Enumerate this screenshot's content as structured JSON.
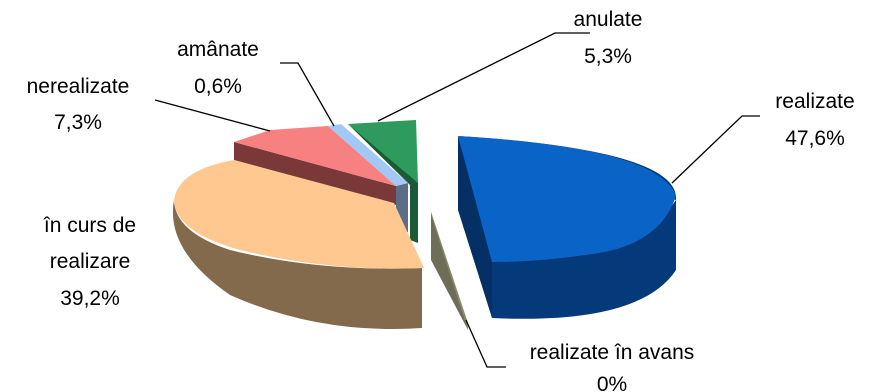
{
  "chart_data": {
    "type": "pie",
    "style": "3d-exploded",
    "legend": "none",
    "series": [
      {
        "label": "realizate",
        "value_label": "47,6%",
        "value": 47.6,
        "color": "#0a64c8",
        "side_color": "#053a7a"
      },
      {
        "label": "realizate în avans",
        "value_label": "0%",
        "value": 0,
        "color": "#8a8a70",
        "side_color": "#6e6e58"
      },
      {
        "label": "în curs de realizare",
        "value_label": "39,2%",
        "value": 39.2,
        "color": "#ffc891",
        "side_color": "#836a4c"
      },
      {
        "label": "nerealizate",
        "value_label": "7,3%",
        "value": 7.3,
        "color": "#f78080",
        "side_color": "#7a3838"
      },
      {
        "label": "amânate",
        "value_label": "0,6%",
        "value": 0.6,
        "color": "#a3c8f5",
        "side_color": "#5a6e8a"
      },
      {
        "label": "anulate",
        "value_label": "5,3%",
        "value": 5.3,
        "color": "#2e9a5e",
        "side_color": "#1a5a36"
      }
    ]
  }
}
